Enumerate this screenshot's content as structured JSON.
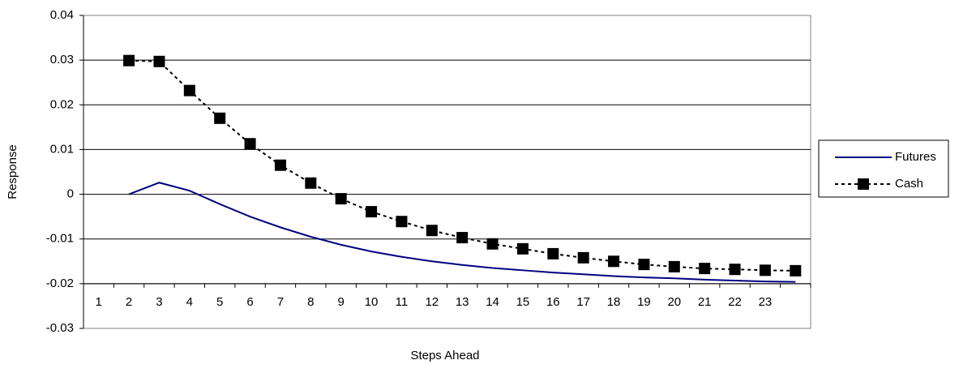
{
  "chart_data": {
    "type": "line",
    "x_label": "Steps Ahead",
    "y_label": "Response",
    "categories": [
      "1",
      "2",
      "3",
      "4",
      "5",
      "6",
      "7",
      "8",
      "9",
      "10",
      "11",
      "12",
      "13",
      "14",
      "15",
      "16",
      "17",
      "18",
      "19",
      "20",
      "21",
      "22",
      "23",
      null
    ],
    "series": [
      {
        "name": "Futures",
        "color": "#000080",
        "line_style": "solid",
        "marker": "none",
        "values": [
          null,
          0,
          0.0026,
          0.0008,
          -0.0022,
          -0.005,
          -0.0074,
          -0.0095,
          -0.0113,
          -0.0128,
          -0.014,
          -0.015,
          -0.0158,
          -0.0165,
          -0.017,
          -0.0175,
          -0.0179,
          -0.0183,
          -0.0186,
          -0.0188,
          -0.0191,
          -0.0193,
          -0.0195,
          -0.0196
        ]
      },
      {
        "name": "Cash",
        "color": "#000000",
        "line_style": "dotted",
        "marker": "square",
        "values": [
          null,
          0.0299,
          0.0297,
          0.0232,
          0.017,
          0.0113,
          0.0065,
          0.0025,
          -0.001,
          -0.0039,
          -0.0061,
          -0.0081,
          -0.0097,
          -0.0111,
          -0.0122,
          -0.0133,
          -0.0142,
          -0.015,
          -0.0157,
          -0.0162,
          -0.0166,
          -0.0168,
          -0.017,
          -0.0171
        ]
      }
    ],
    "ylim": [
      -0.03,
      0.04
    ],
    "yticks": [
      -0.03,
      -0.02,
      -0.01,
      0,
      0.01,
      0.02,
      0.03,
      0.04
    ],
    "x_axis_crosses": -0.02,
    "grid": true,
    "legend": "right"
  }
}
